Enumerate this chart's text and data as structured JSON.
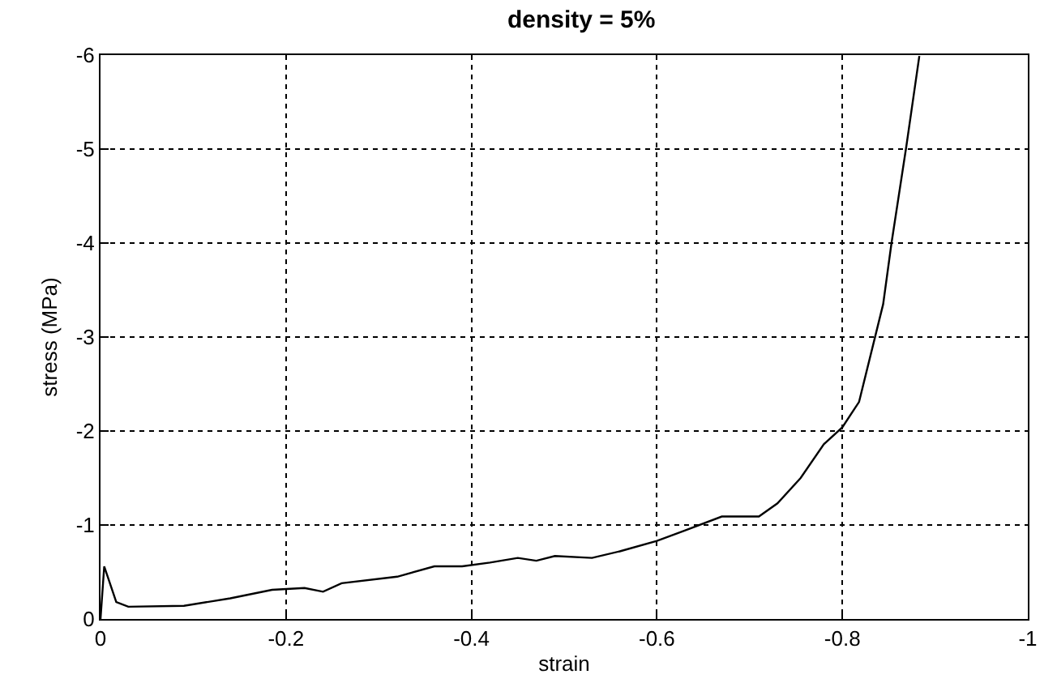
{
  "chart_data": {
    "type": "line",
    "title": "density = 5%",
    "xlabel": "strain",
    "ylabel": "stress (MPa)",
    "x": [
      0,
      -0.004,
      -0.017,
      -0.03,
      -0.09,
      -0.14,
      -0.185,
      -0.22,
      -0.24,
      -0.26,
      -0.32,
      -0.36,
      -0.39,
      -0.42,
      -0.45,
      -0.47,
      -0.49,
      -0.53,
      -0.56,
      -0.6,
      -0.63,
      -0.67,
      -0.71,
      -0.73,
      -0.755,
      -0.78,
      -0.8,
      -0.818,
      -0.844,
      -0.853,
      -0.869,
      -0.883
    ],
    "series": [
      {
        "color": "#000000",
        "values": [
          0,
          -0.56,
          -0.18,
          -0.13,
          -0.14,
          -0.22,
          -0.31,
          -0.33,
          -0.29,
          -0.38,
          -0.45,
          -0.56,
          -0.56,
          -0.6,
          -0.65,
          -0.62,
          -0.67,
          -0.65,
          -0.72,
          -0.83,
          -0.94,
          -1.09,
          -1.09,
          -1.23,
          -1.5,
          -1.86,
          -2.04,
          -2.31,
          -3.35,
          -4.0,
          -5.03,
          -5.99
        ]
      }
    ],
    "xlim": [
      0,
      -1
    ],
    "xticks": [
      0,
      -0.2,
      -0.4,
      -0.6,
      -0.8,
      -1
    ],
    "ylim": [
      0,
      -6
    ],
    "yticks": [
      0,
      -1,
      -2,
      -3,
      -4,
      -5,
      -6
    ],
    "grid": true,
    "marker": "none",
    "line_style": "solid"
  }
}
